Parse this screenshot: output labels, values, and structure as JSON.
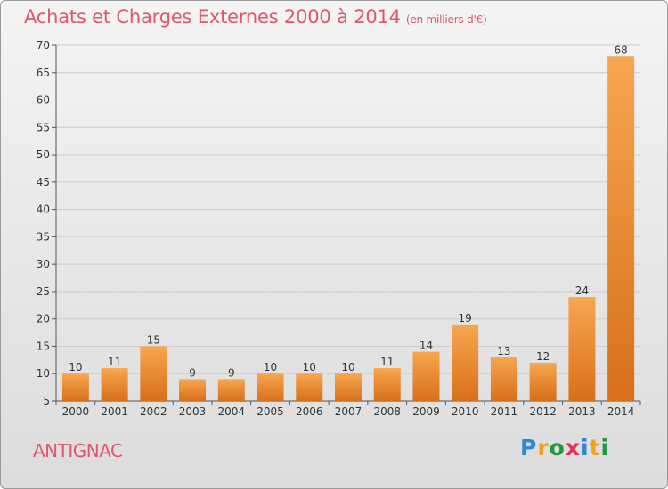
{
  "title": "Achats et Charges Externes 2000 à 2014",
  "subtitle": "(en milliers d'€)",
  "commune": "ANTIGNAC",
  "logo_text": "Proxiti",
  "colors": {
    "bar_light": "#f8a650",
    "bar_dark": "#d86f1a",
    "title": "#e0566a",
    "grid": "#cccccc"
  },
  "chart_data": {
    "type": "bar",
    "title": "Achats et Charges Externes 2000 à 2014",
    "subtitle": "(en milliers d'€)",
    "categories": [
      "2000",
      "2001",
      "2002",
      "2003",
      "2004",
      "2005",
      "2006",
      "2007",
      "2008",
      "2009",
      "2010",
      "2011",
      "2012",
      "2013",
      "2014"
    ],
    "values": [
      10,
      11,
      15,
      9,
      9,
      10,
      10,
      10,
      11,
      14,
      19,
      13,
      12,
      24,
      68
    ],
    "ylim": [
      5,
      70
    ],
    "yticks": [
      5,
      10,
      15,
      20,
      25,
      30,
      35,
      40,
      45,
      50,
      55,
      60,
      65,
      70
    ],
    "grid": true
  }
}
